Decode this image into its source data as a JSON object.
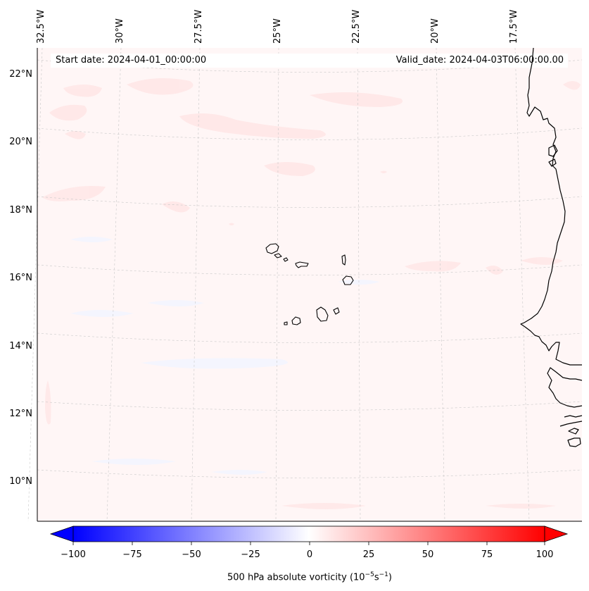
{
  "map": {
    "lon_labels": [
      "32.5°W",
      "30°W",
      "27.5°W",
      "25°W",
      "22.5°W",
      "20°W",
      "17.5°W"
    ],
    "lat_labels": [
      "22°N",
      "20°N",
      "18°N",
      "16°N",
      "14°N",
      "12°N",
      "10°N"
    ],
    "start_date": "Start date: 2024-04-01_00:00:00",
    "valid_date": "Valid_date: 2024-04-03T06:00:00.00",
    "field_color_low": "#0000ff",
    "field_color_mid": "#ffffff",
    "field_color_high": "#ff0000",
    "background_tint": "#fff5f5"
  },
  "colorbar": {
    "ticks": [
      "−100",
      "−75",
      "−50",
      "−25",
      "0",
      "25",
      "50",
      "75",
      "100"
    ],
    "min": -100,
    "max": 100,
    "label": "500 hPa absolute vorticity (10",
    "label_exp1": "−5",
    "label_mid": "s",
    "label_exp2": "−1",
    "label_end": ")"
  }
}
